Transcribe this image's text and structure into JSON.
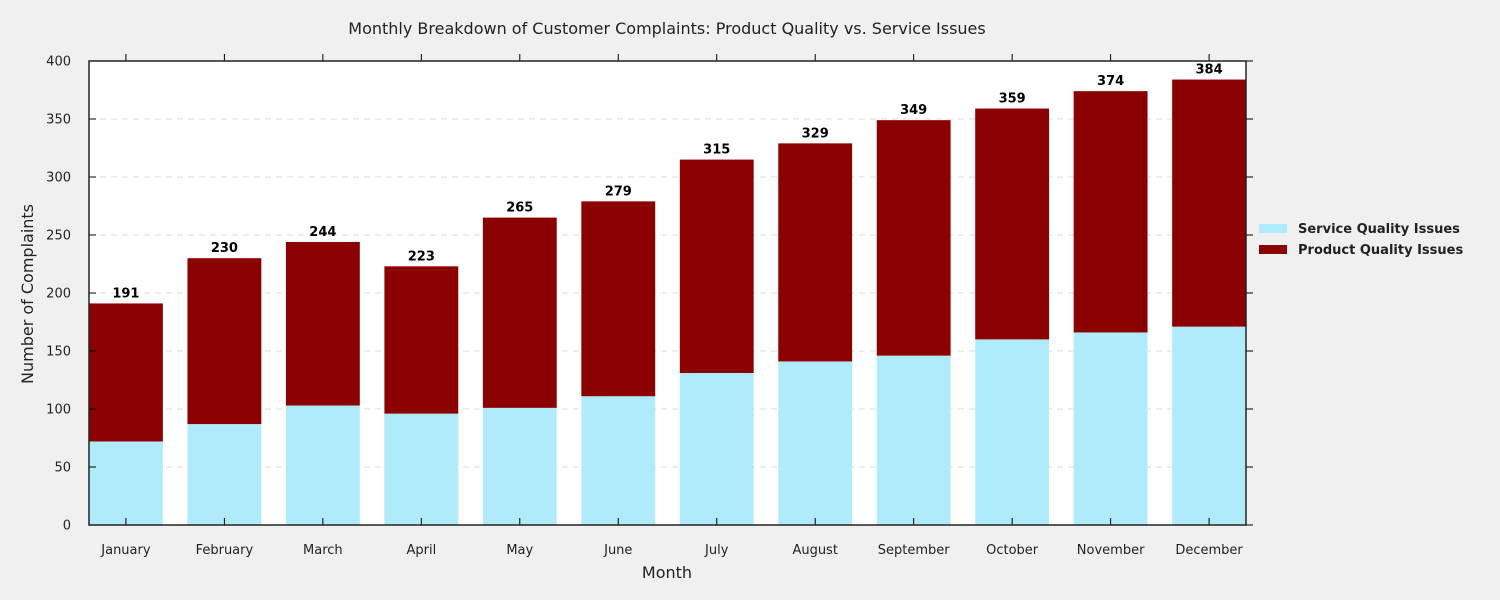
{
  "chart_data": {
    "type": "bar",
    "stacked": true,
    "title": "Monthly Breakdown of Customer Complaints: Product Quality vs. Service Issues",
    "xlabel": "Month",
    "ylabel": "Number of Complaints",
    "ylim": [
      0,
      400
    ],
    "yticks": [
      0,
      50,
      100,
      150,
      200,
      250,
      300,
      350,
      400
    ],
    "grid": "horizontal dashed",
    "legend_position": "right",
    "categories": [
      "January",
      "February",
      "March",
      "April",
      "May",
      "June",
      "July",
      "August",
      "September",
      "October",
      "November",
      "December"
    ],
    "series": [
      {
        "name": "Service Quality Issues",
        "color": "#b0ebfc",
        "values": [
          72,
          87,
          103,
          96,
          101,
          111,
          131,
          141,
          146,
          160,
          166,
          171
        ]
      },
      {
        "name": "Product Quality Issues",
        "color": "#8b0000",
        "values": [
          119,
          143,
          141,
          127,
          164,
          168,
          184,
          188,
          203,
          199,
          208,
          213
        ]
      }
    ],
    "totals": [
      191,
      230,
      244,
      223,
      265,
      279,
      315,
      329,
      349,
      359,
      374,
      384
    ]
  }
}
